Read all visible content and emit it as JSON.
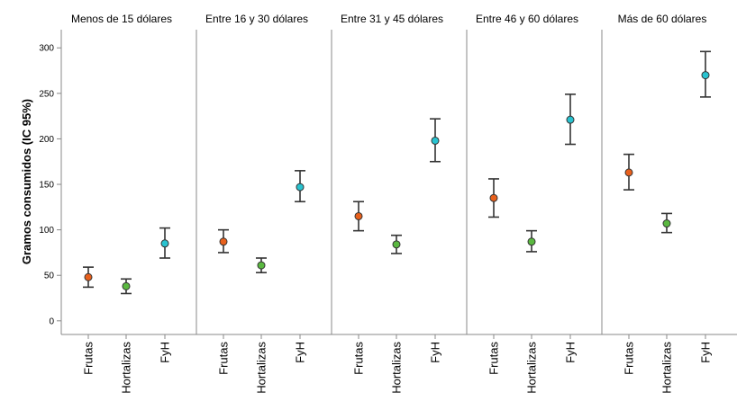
{
  "chart_data": {
    "type": "errorbar",
    "ylabel": "Gramos consumidos (IC 95%)",
    "ylim": [
      -15,
      320
    ],
    "yticks": [
      0,
      50,
      100,
      150,
      200,
      250,
      300
    ],
    "categories": [
      "Frutas",
      "Hortalizas",
      "FyH"
    ],
    "category_colors": [
      "#e8601c",
      "#5ab840",
      "#29c3d0"
    ],
    "panels": [
      {
        "title": "Menos de 15 dólares",
        "points": [
          {
            "category": "Frutas",
            "mean": 48,
            "lower": 37,
            "upper": 59
          },
          {
            "category": "Hortalizas",
            "mean": 38,
            "lower": 30,
            "upper": 46
          },
          {
            "category": "FyH",
            "mean": 85,
            "lower": 69,
            "upper": 102
          }
        ]
      },
      {
        "title": "Entre 16 y 30 dólares",
        "points": [
          {
            "category": "Frutas",
            "mean": 87,
            "lower": 75,
            "upper": 100
          },
          {
            "category": "Hortalizas",
            "mean": 61,
            "lower": 53,
            "upper": 69
          },
          {
            "category": "FyH",
            "mean": 147,
            "lower": 131,
            "upper": 165
          }
        ]
      },
      {
        "title": "Entre 31 y 45 dólares",
        "points": [
          {
            "category": "Frutas",
            "mean": 115,
            "lower": 99,
            "upper": 131
          },
          {
            "category": "Hortalizas",
            "mean": 84,
            "lower": 74,
            "upper": 94
          },
          {
            "category": "FyH",
            "mean": 198,
            "lower": 175,
            "upper": 222
          }
        ]
      },
      {
        "title": "Entre 46 y 60 dólares",
        "points": [
          {
            "category": "Frutas",
            "mean": 135,
            "lower": 114,
            "upper": 156
          },
          {
            "category": "Hortalizas",
            "mean": 87,
            "lower": 76,
            "upper": 99
          },
          {
            "category": "FyH",
            "mean": 221,
            "lower": 194,
            "upper": 249
          }
        ]
      },
      {
        "title": "Más de 60 dólares",
        "points": [
          {
            "category": "Frutas",
            "mean": 163,
            "lower": 144,
            "upper": 183
          },
          {
            "category": "Hortalizas",
            "mean": 107,
            "lower": 97,
            "upper": 118
          },
          {
            "category": "FyH",
            "mean": 270,
            "lower": 246,
            "upper": 296
          }
        ]
      }
    ],
    "grid": false,
    "legend": "none"
  }
}
